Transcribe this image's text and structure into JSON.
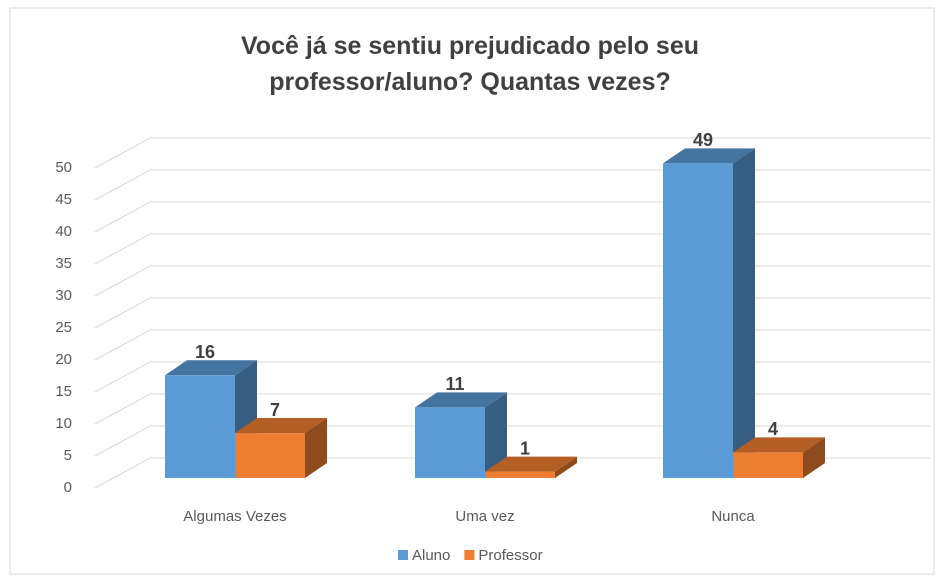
{
  "chart_data": {
    "type": "bar3d",
    "title": "Você já se sentiu prejudicado pelo seu professor/aluno? Quantas vezes?",
    "categories": [
      "Algumas Vezes",
      "Uma vez",
      "Nunca"
    ],
    "series": [
      {
        "name": "Aluno",
        "color": "#5b9bd5",
        "values": [
          16,
          11,
          49
        ]
      },
      {
        "name": "Professor",
        "color": "#ed7d31",
        "values": [
          7,
          1,
          4
        ]
      }
    ],
    "ylim": [
      0,
      50
    ],
    "yticks": [
      0,
      5,
      10,
      15,
      20,
      25,
      30,
      35,
      40,
      45,
      50
    ],
    "grid": true,
    "legend": "bottom"
  }
}
